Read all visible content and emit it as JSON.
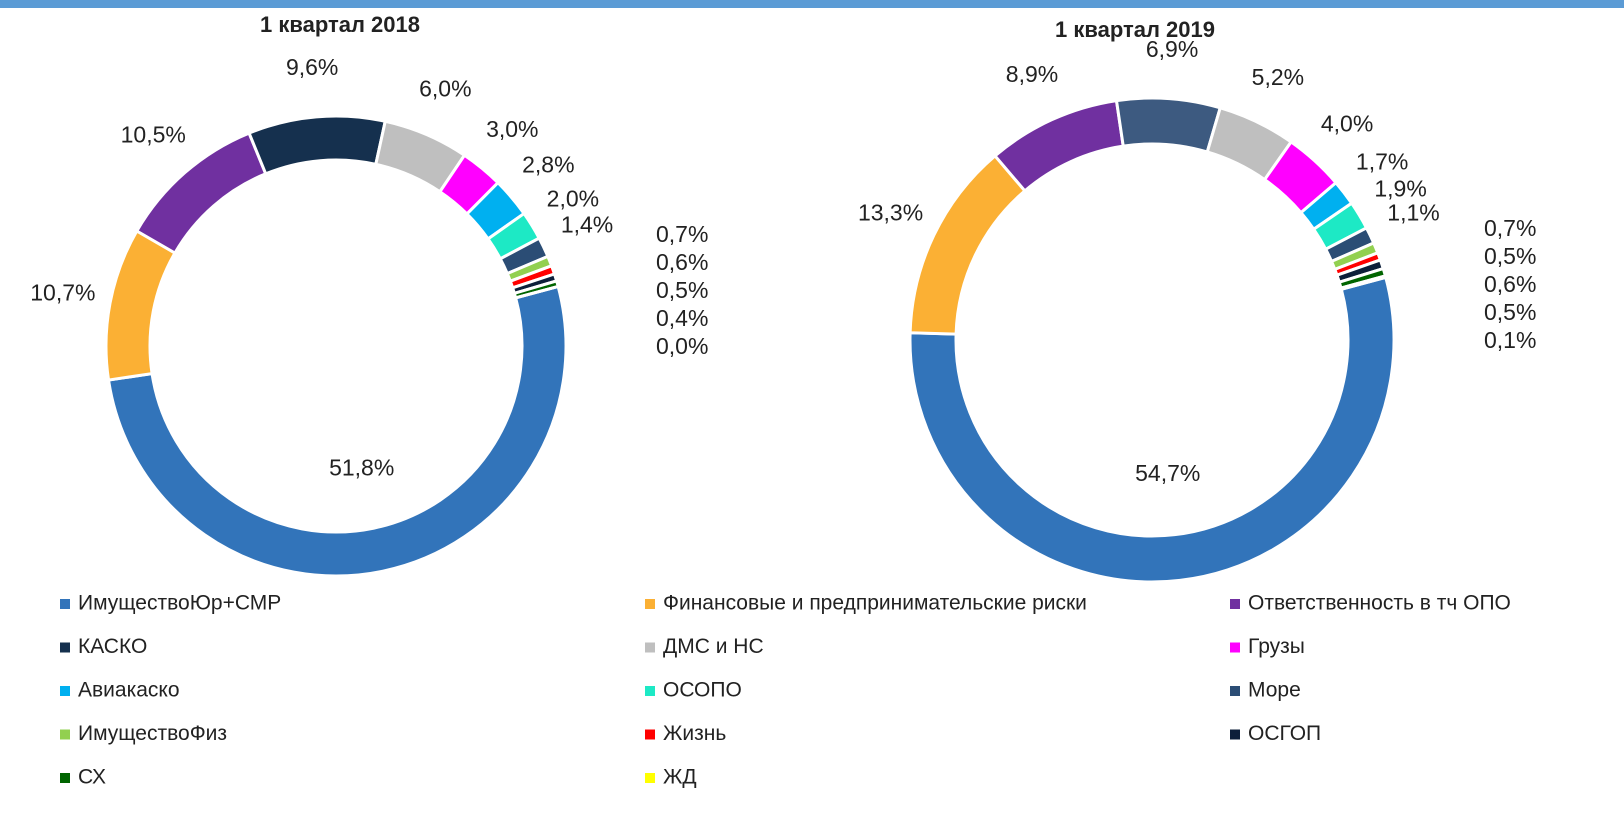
{
  "legend": {
    "categories": [
      "ИмуществоЮр+СМР",
      "Финансовые и предпринимательские риски",
      "Ответственность в тч ОПО",
      "КАСКО",
      "ДМС и НС",
      "Грузы",
      "Авиакаско",
      "ОСОПО",
      "Море",
      "ИмуществоФиз",
      "Жизнь",
      "ОСГОП",
      "СХ",
      "ЖД"
    ],
    "colors": [
      "#3274BA",
      "#FBB034",
      "#7030A0",
      "#15304E",
      "#BFBFBF",
      "#FF00FF",
      "#00B0F0",
      "#1DE9C5",
      "#2B4D75",
      "#92D050",
      "#FF0000",
      "#0D1F3A",
      "#006400",
      "#FFFF00"
    ]
  },
  "chart_data": [
    {
      "type": "donut",
      "title": "1 квартал 2018",
      "values": [
        51.8,
        10.7,
        10.5,
        9.6,
        6.0,
        3.0,
        2.8,
        2.0,
        1.4,
        0.7,
        0.6,
        0.5,
        0.4,
        0.0
      ],
      "value_labels": [
        "51,8%",
        "10,7%",
        "10,5%",
        "9,6%",
        "6,0%",
        "3,0%",
        "2,8%",
        "2,0%",
        "1,4%",
        "0,7%",
        "0,6%",
        "0,5%",
        "0,4%",
        "0,0%"
      ],
      "colors": [
        "#3274BA",
        "#FBB034",
        "#7030A0",
        "#15304E",
        "#BFBFBF",
        "#FF00FF",
        "#00B0F0",
        "#1DE9C5",
        "#2B4D75",
        "#92D050",
        "#FF0000",
        "#0D1F3A",
        "#006400",
        "#FFFF00"
      ]
    },
    {
      "type": "donut",
      "title": "1 квартал 2019",
      "values": [
        54.7,
        13.3,
        8.9,
        6.9,
        5.2,
        4.0,
        1.7,
        1.9,
        1.1,
        0.7,
        0.5,
        0.6,
        0.5,
        0.1
      ],
      "value_labels": [
        "54,7%",
        "13,3%",
        "8,9%",
        "6,9%",
        "5,2%",
        "4,0%",
        "1,7%",
        "1,9%",
        "1,1%",
        "0,7%",
        "0,5%",
        "0,6%",
        "0,5%",
        "0,1%"
      ],
      "colors": [
        "#3274BA",
        "#FBB034",
        "#7030A0",
        "#3D5A80",
        "#BFBFBF",
        "#FF00FF",
        "#00B0F0",
        "#1DE9C5",
        "#2B4D75",
        "#92D050",
        "#FF0000",
        "#0D1F3A",
        "#006400",
        "#FFFF00"
      ]
    }
  ]
}
